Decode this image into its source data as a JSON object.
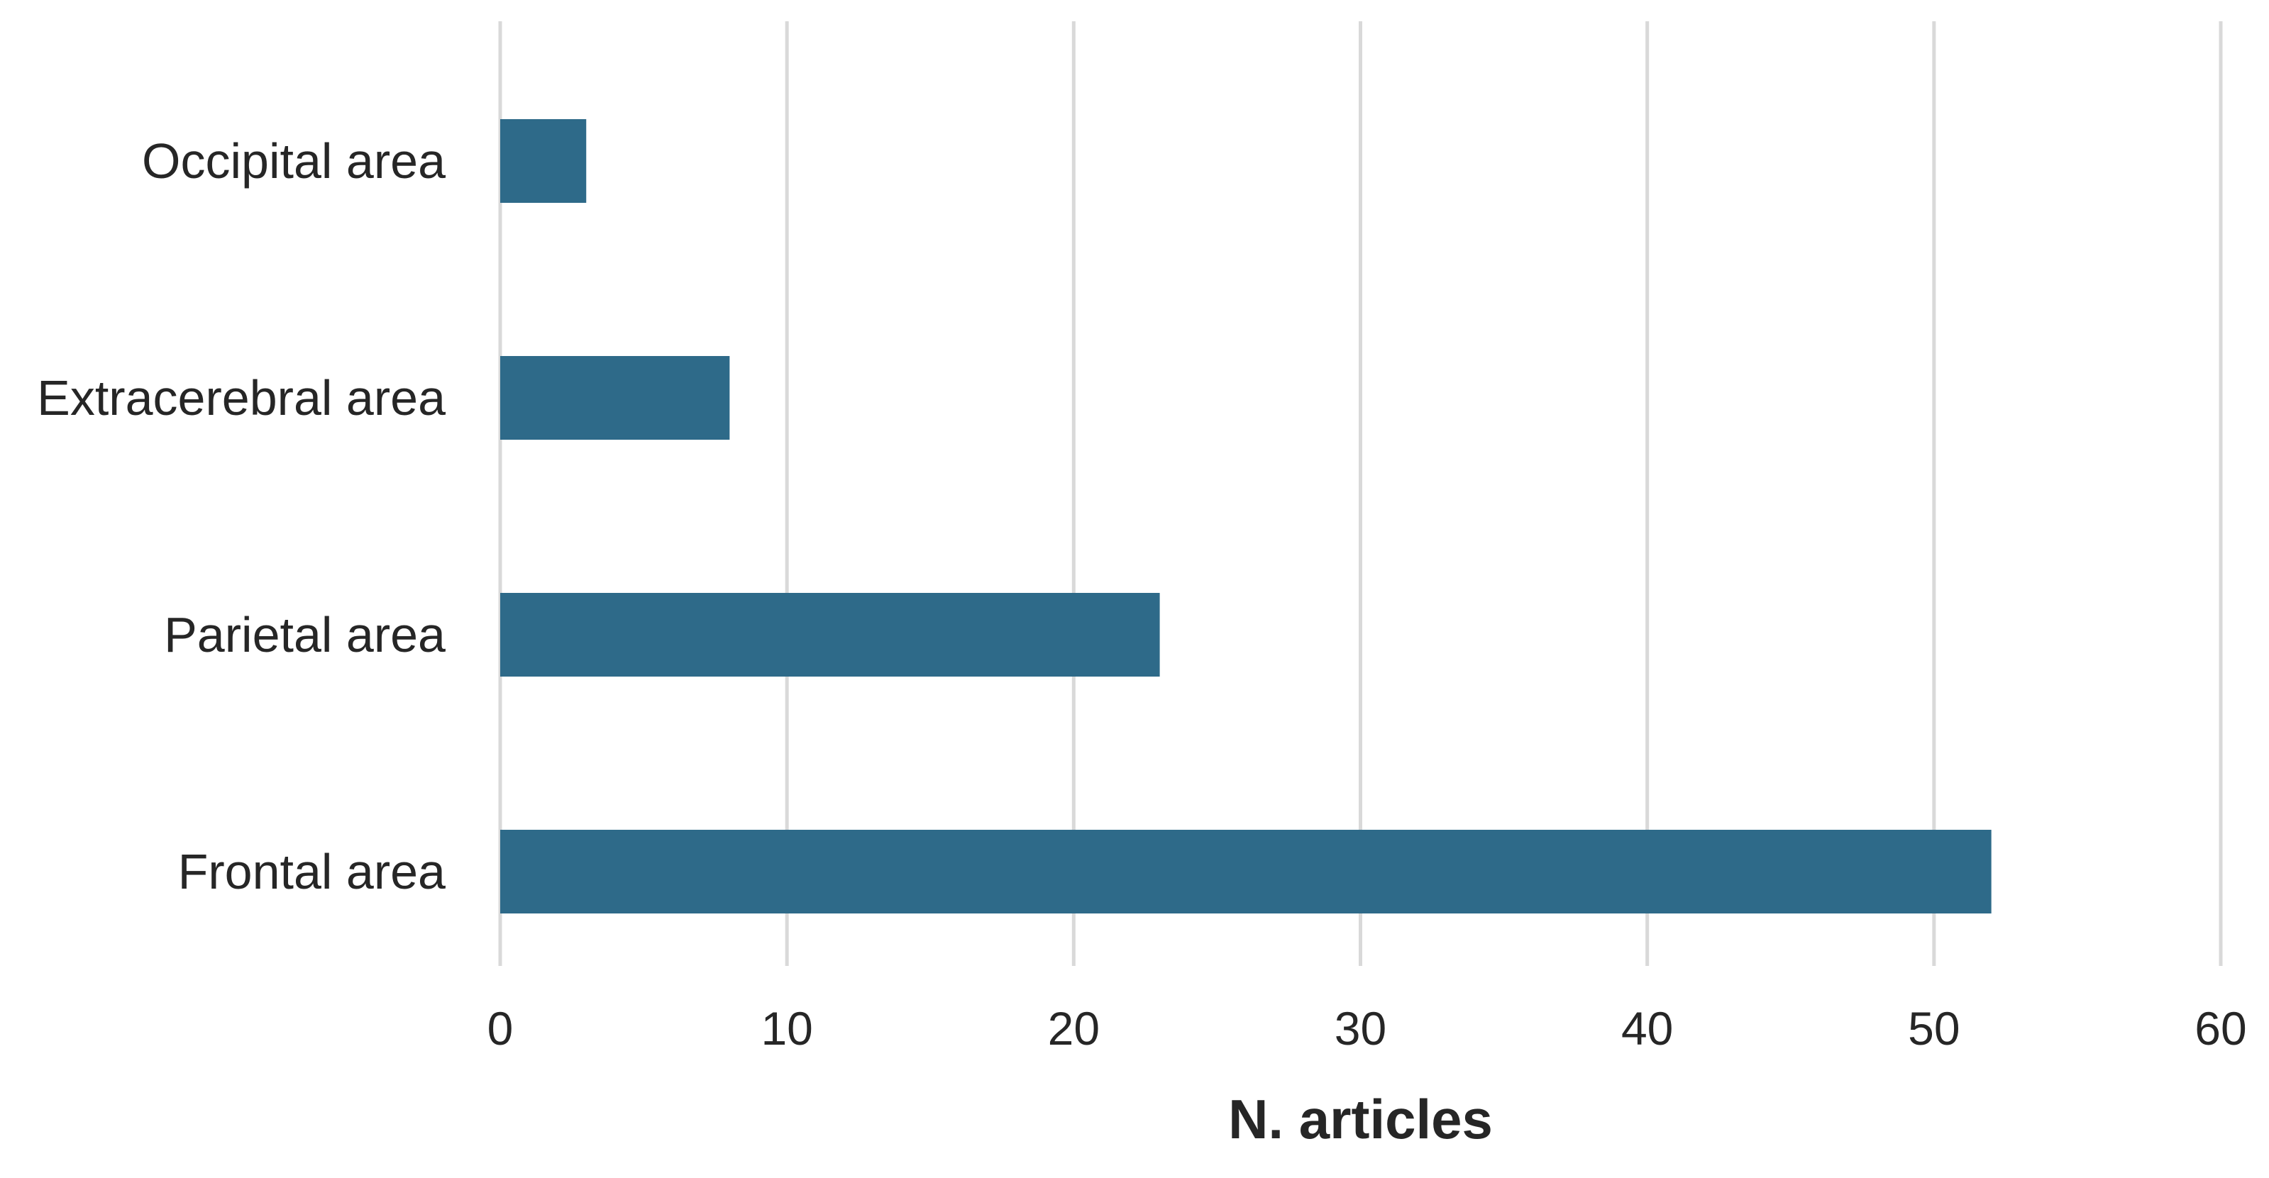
{
  "chart_data": {
    "type": "bar",
    "orientation": "horizontal",
    "categories": [
      "Occipital area",
      "Extracerebral area",
      "Parietal area",
      "Frontal area"
    ],
    "values": [
      3,
      8,
      23,
      52
    ],
    "title": "",
    "xlabel": "N. articles",
    "ylabel": "",
    "xlim": [
      0,
      60
    ],
    "xticks": [
      0,
      10,
      20,
      30,
      40,
      50,
      60
    ],
    "grid": "vertical",
    "legend": "none",
    "bar_color": "#2e6a89"
  }
}
